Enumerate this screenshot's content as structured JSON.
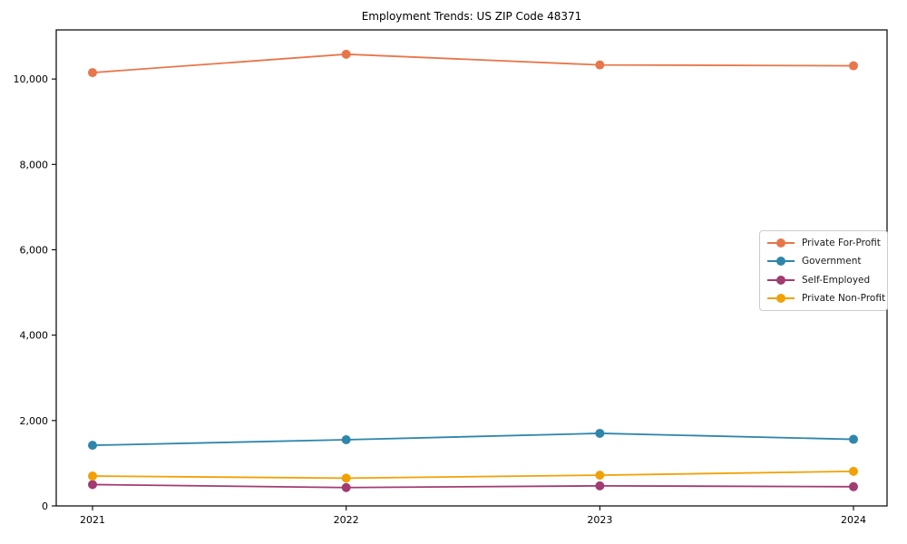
{
  "chart_data": {
    "type": "line",
    "title": "Employment Trends: US ZIP Code 48371",
    "xlabel": "",
    "ylabel": "",
    "x": [
      2021,
      2022,
      2023,
      2024
    ],
    "x_tick_labels": [
      "2021",
      "2022",
      "2023",
      "2024"
    ],
    "y_ticks": [
      0,
      2000,
      4000,
      6000,
      8000,
      10000
    ],
    "y_tick_labels": [
      "0",
      "2,000",
      "4,000",
      "6,000",
      "8,000",
      "10,000"
    ],
    "ylim": [
      0,
      11150
    ],
    "grid": false,
    "legend_position": "center-right",
    "marker": "circle",
    "series": [
      {
        "name": "Private For-Profit",
        "color": "#E8764B",
        "values": [
          10150,
          10580,
          10330,
          10310
        ]
      },
      {
        "name": "Government",
        "color": "#2E86AB",
        "values": [
          1420,
          1550,
          1700,
          1560
        ]
      },
      {
        "name": "Self-Employed",
        "color": "#A23B72",
        "values": [
          500,
          430,
          470,
          450
        ]
      },
      {
        "name": "Private Non-Profit",
        "color": "#F2A104",
        "values": [
          700,
          650,
          720,
          810
        ]
      }
    ]
  }
}
